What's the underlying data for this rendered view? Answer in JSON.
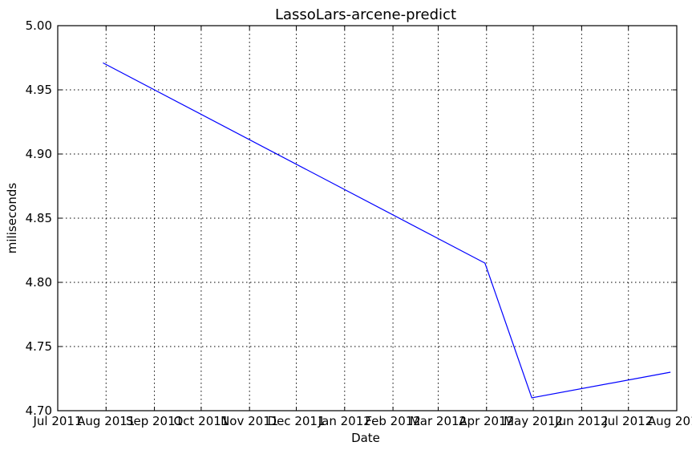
{
  "chart_data": {
    "type": "line",
    "title": "LassoLars-arcene-predict",
    "xlabel": "Date",
    "ylabel": "miliseconds",
    "x_tick_labels": [
      "Jul 2011",
      "Aug 2011",
      "Sep 2011",
      "Oct 2011",
      "Nov 2011",
      "Dec 2011",
      "Jan 2012",
      "Feb 2012",
      "Mar 2012",
      "Apr 2012",
      "May 2012",
      "Jun 2012",
      "Jul 2012",
      "Aug 2012"
    ],
    "y_tick_labels": [
      "4.70",
      "4.75",
      "4.80",
      "4.85",
      "4.90",
      "4.95",
      "5.00"
    ],
    "xlim": [
      "2011-07-01",
      "2012-08-01"
    ],
    "ylim": [
      4.7,
      5.0
    ],
    "grid": true,
    "series": [
      {
        "x": [
          "2011-07-30",
          "2012-03-31",
          "2012-04-30",
          "2012-07-28"
        ],
        "y": [
          4.971,
          4.815,
          4.71,
          4.73
        ],
        "color": "#0000ff"
      }
    ]
  }
}
